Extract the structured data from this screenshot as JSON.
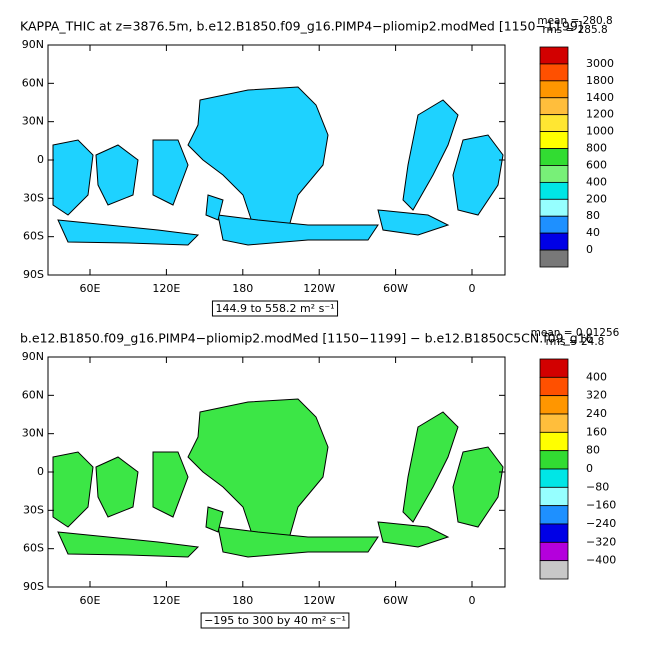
{
  "panels": [
    {
      "title": "KAPPA_THIC at z=3876.5m, b.e12.B1850.f09_g16.PIMP4−pliomip2.modMed [1150−1199]",
      "stats": [
        "mean = 280.8",
        "rms = 285.8"
      ],
      "yticks": [
        "90N",
        "60N",
        "30N",
        "0",
        "30S",
        "60S",
        "90S"
      ],
      "xticks": [
        "60E",
        "120E",
        "180",
        "120W",
        "60W",
        "0"
      ],
      "range_label": "144.9 to 558.2 m² s⁻¹",
      "land_color": "#1ed2ff",
      "colorbar": {
        "labels": [
          "3000",
          "1800",
          "1400",
          "1200",
          "1000",
          "800",
          "600",
          "400",
          "200",
          "80",
          "40",
          "0"
        ],
        "colors": [
          "#d20000",
          "#ff5000",
          "#ff9600",
          "#ffbe3c",
          "#ffe632",
          "#ffff00",
          "#32dc32",
          "#78f078",
          "#00e6e6",
          "#96ffff",
          "#1e90ff",
          "#0000e6",
          "#787878"
        ]
      }
    },
    {
      "title": "b.e12.B1850.f09_g16.PIMP4−pliomip2.modMed [1150−1199] − b.e12.B1850C5CN.f09_g16",
      "stats": [
        "mean = 0.01256",
        "rms = 24.8"
      ],
      "yticks": [
        "90N",
        "60N",
        "30N",
        "0",
        "30S",
        "60S",
        "90S"
      ],
      "xticks": [
        "60E",
        "120E",
        "180",
        "120W",
        "60W",
        "0"
      ],
      "range_label": "−195 to 300 by 40 m² s⁻¹",
      "land_color": "#3ce646",
      "colorbar": {
        "labels": [
          "400",
          "320",
          "240",
          "160",
          "80",
          "0",
          "−80",
          "−160",
          "−240",
          "−320",
          "−400"
        ],
        "colors": [
          "#d20000",
          "#ff5000",
          "#ff9600",
          "#ffbe3c",
          "#ffff00",
          "#32dc32",
          "#00e6e6",
          "#96ffff",
          "#1e90ff",
          "#0000e6",
          "#b400dc",
          "#c8c8c8"
        ]
      }
    }
  ]
}
